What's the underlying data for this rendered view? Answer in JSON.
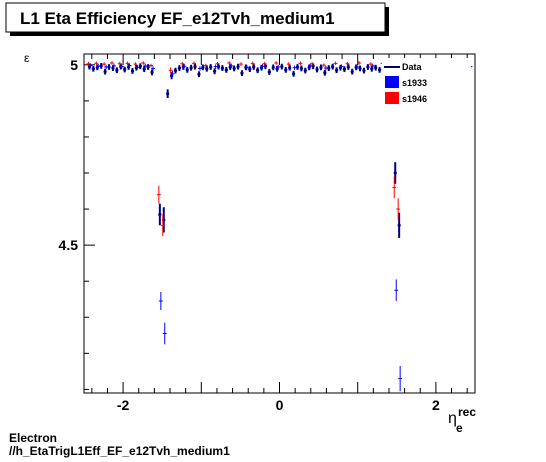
{
  "title": "L1 Eta Efficiency EF_e12Tvh_medium1",
  "footer": {
    "line1": "Electron",
    "line2": "//h_EtaTrigL1Eff_EF_e12Tvh_medium1"
  },
  "colors": {
    "Data": "#00007f",
    "s1933": "#0000ff",
    "s1946": "#ff0000",
    "frame": "#000000"
  },
  "chart_data": {
    "type": "scatter",
    "title": "L1 Eta Efficiency EF_e12Tvh_medium1",
    "xlabel_main": "η",
    "xlabel_sup": "rec",
    "xlabel_sub": "e",
    "ylabel": "ε",
    "xlim": [
      -2.5,
      2.5
    ],
    "ylim": [
      4.09,
      5.03
    ],
    "xticks": [
      -2,
      0,
      2
    ],
    "yticks": [
      4.5,
      5
    ],
    "xtick_labels": [
      "-2",
      "0",
      "2"
    ],
    "ytick_labels": [
      "4.5",
      "5"
    ],
    "grid": false,
    "legend_position": "top-right",
    "series": [
      {
        "name": "Data",
        "style": "points",
        "points": [
          {
            "x": -2.43,
            "y": 4.995,
            "e": 0.008
          },
          {
            "x": -2.38,
            "y": 4.989,
            "e": 0.008
          },
          {
            "x": -2.33,
            "y": 4.993,
            "e": 0.008
          },
          {
            "x": -2.28,
            "y": 4.997,
            "e": 0.008
          },
          {
            "x": -2.23,
            "y": 4.981,
            "e": 0.008
          },
          {
            "x": -2.18,
            "y": 4.994,
            "e": 0.008
          },
          {
            "x": -2.13,
            "y": 4.991,
            "e": 0.008
          },
          {
            "x": -2.08,
            "y": 4.985,
            "e": 0.008
          },
          {
            "x": -2.03,
            "y": 4.995,
            "e": 0.008
          },
          {
            "x": -1.98,
            "y": 4.987,
            "e": 0.008
          },
          {
            "x": -1.93,
            "y": 4.994,
            "e": 0.008
          },
          {
            "x": -1.88,
            "y": 4.983,
            "e": 0.008
          },
          {
            "x": -1.83,
            "y": 4.992,
            "e": 0.008
          },
          {
            "x": -1.78,
            "y": 4.996,
            "e": 0.008
          },
          {
            "x": -1.73,
            "y": 4.988,
            "e": 0.008
          },
          {
            "x": -1.68,
            "y": 4.994,
            "e": 0.008
          },
          {
            "x": -1.63,
            "y": 4.979,
            "e": 0.008
          },
          {
            "x": -1.53,
            "y": 4.585,
            "e": 0.03
          },
          {
            "x": -1.48,
            "y": 4.57,
            "e": 0.035
          },
          {
            "x": -1.43,
            "y": 4.92,
            "e": 0.012
          },
          {
            "x": -1.38,
            "y": 4.97,
            "e": 0.01
          },
          {
            "x": -1.33,
            "y": 4.984,
            "e": 0.008
          },
          {
            "x": -1.28,
            "y": 4.991,
            "e": 0.008
          },
          {
            "x": -1.23,
            "y": 4.994,
            "e": 0.008
          },
          {
            "x": -1.18,
            "y": 4.986,
            "e": 0.008
          },
          {
            "x": -1.13,
            "y": 4.992,
            "e": 0.008
          },
          {
            "x": -1.08,
            "y": 4.995,
            "e": 0.008
          },
          {
            "x": -1.03,
            "y": 4.974,
            "e": 0.008
          },
          {
            "x": -0.98,
            "y": 4.993,
            "e": 0.008
          },
          {
            "x": -0.93,
            "y": 4.989,
            "e": 0.008
          },
          {
            "x": -0.88,
            "y": 4.994,
            "e": 0.008
          },
          {
            "x": -0.83,
            "y": 4.982,
            "e": 0.008
          },
          {
            "x": -0.78,
            "y": 4.995,
            "e": 0.008
          },
          {
            "x": -0.73,
            "y": 4.991,
            "e": 0.008
          },
          {
            "x": -0.68,
            "y": 4.986,
            "e": 0.008
          },
          {
            "x": -0.63,
            "y": 4.994,
            "e": 0.008
          },
          {
            "x": -0.58,
            "y": 4.99,
            "e": 0.008
          },
          {
            "x": -0.53,
            "y": 4.995,
            "e": 0.008
          },
          {
            "x": -0.48,
            "y": 4.977,
            "e": 0.008
          },
          {
            "x": -0.43,
            "y": 4.993,
            "e": 0.008
          },
          {
            "x": -0.38,
            "y": 4.988,
            "e": 0.008
          },
          {
            "x": -0.33,
            "y": 4.994,
            "e": 0.008
          },
          {
            "x": -0.28,
            "y": 4.985,
            "e": 0.008
          },
          {
            "x": -0.23,
            "y": 4.992,
            "e": 0.008
          },
          {
            "x": -0.18,
            "y": 4.996,
            "e": 0.008
          },
          {
            "x": -0.13,
            "y": 4.98,
            "e": 0.008
          },
          {
            "x": -0.08,
            "y": 4.993,
            "e": 0.008
          },
          {
            "x": -0.03,
            "y": 4.989,
            "e": 0.008
          },
          {
            "x": 0.03,
            "y": 4.995,
            "e": 0.008
          },
          {
            "x": 0.08,
            "y": 4.986,
            "e": 0.008
          },
          {
            "x": 0.13,
            "y": 4.992,
            "e": 0.008
          },
          {
            "x": 0.18,
            "y": 4.975,
            "e": 0.008
          },
          {
            "x": 0.23,
            "y": 4.994,
            "e": 0.008
          },
          {
            "x": 0.28,
            "y": 4.99,
            "e": 0.008
          },
          {
            "x": 0.33,
            "y": 4.984,
            "e": 0.008
          },
          {
            "x": 0.38,
            "y": 4.993,
            "e": 0.008
          },
          {
            "x": 0.43,
            "y": 4.996,
            "e": 0.008
          },
          {
            "x": 0.48,
            "y": 4.987,
            "e": 0.008
          },
          {
            "x": 0.53,
            "y": 4.993,
            "e": 0.008
          },
          {
            "x": 0.58,
            "y": 4.978,
            "e": 0.008
          },
          {
            "x": 0.63,
            "y": 4.991,
            "e": 0.008
          },
          {
            "x": 0.68,
            "y": 4.995,
            "e": 0.008
          },
          {
            "x": 0.73,
            "y": 4.985,
            "e": 0.008
          },
          {
            "x": 0.78,
            "y": 4.992,
            "e": 0.008
          },
          {
            "x": 0.83,
            "y": 4.988,
            "e": 0.008
          },
          {
            "x": 0.88,
            "y": 4.994,
            "e": 0.008
          },
          {
            "x": 0.93,
            "y": 4.981,
            "e": 0.008
          },
          {
            "x": 0.98,
            "y": 4.993,
            "e": 0.008
          },
          {
            "x": 1.03,
            "y": 4.99,
            "e": 0.008
          },
          {
            "x": 1.08,
            "y": 4.984,
            "e": 0.008
          },
          {
            "x": 1.13,
            "y": 4.994,
            "e": 0.008
          },
          {
            "x": 1.18,
            "y": 4.989,
            "e": 0.008
          },
          {
            "x": 1.23,
            "y": 4.992,
            "e": 0.008
          },
          {
            "x": 1.28,
            "y": 4.986,
            "e": 0.008
          },
          {
            "x": 1.33,
            "y": 4.994,
            "e": 0.008
          },
          {
            "x": 1.38,
            "y": 4.972,
            "e": 0.01
          },
          {
            "x": 1.43,
            "y": 4.93,
            "e": 0.012
          },
          {
            "x": 1.48,
            "y": 4.7,
            "e": 0.03
          },
          {
            "x": 1.53,
            "y": 4.555,
            "e": 0.035
          },
          {
            "x": 1.58,
            "y": 4.978,
            "e": 0.01
          },
          {
            "x": 1.63,
            "y": 4.986,
            "e": 0.008
          },
          {
            "x": 1.68,
            "y": 4.993,
            "e": 0.008
          },
          {
            "x": 1.73,
            "y": 4.989,
            "e": 0.008
          },
          {
            "x": 1.78,
            "y": 4.995,
            "e": 0.008
          },
          {
            "x": 1.83,
            "y": 4.983,
            "e": 0.008
          },
          {
            "x": 1.88,
            "y": 4.992,
            "e": 0.008
          },
          {
            "x": 1.93,
            "y": 4.987,
            "e": 0.008
          },
          {
            "x": 1.98,
            "y": 4.994,
            "e": 0.008
          },
          {
            "x": 2.03,
            "y": 4.99,
            "e": 0.008
          },
          {
            "x": 2.08,
            "y": 4.986,
            "e": 0.008
          },
          {
            "x": 2.13,
            "y": 4.993,
            "e": 0.008
          },
          {
            "x": 2.18,
            "y": 4.979,
            "e": 0.008
          },
          {
            "x": 2.23,
            "y": 4.994,
            "e": 0.008
          },
          {
            "x": 2.28,
            "y": 4.991,
            "e": 0.008
          },
          {
            "x": 2.33,
            "y": 4.985,
            "e": 0.008
          },
          {
            "x": 2.38,
            "y": 4.993,
            "e": 0.008
          },
          {
            "x": 2.43,
            "y": 4.989,
            "e": 0.008
          }
        ]
      },
      {
        "name": "s1933",
        "style": "errorbars",
        "points": [
          {
            "x": -2.43,
            "y": 4.998,
            "e": 0.006
          },
          {
            "x": -2.33,
            "y": 4.996,
            "e": 0.006
          },
          {
            "x": -2.23,
            "y": 4.994,
            "e": 0.006
          },
          {
            "x": -2.13,
            "y": 4.997,
            "e": 0.006
          },
          {
            "x": -2.03,
            "y": 4.995,
            "e": 0.006
          },
          {
            "x": -1.93,
            "y": 4.998,
            "e": 0.006
          },
          {
            "x": -1.83,
            "y": 4.993,
            "e": 0.006
          },
          {
            "x": -1.73,
            "y": 4.997,
            "e": 0.006
          },
          {
            "x": -1.63,
            "y": 4.99,
            "e": 0.006
          },
          {
            "x": -1.53,
            "y": 4.345,
            "e": 0.025
          },
          {
            "x": -1.48,
            "y": 4.255,
            "e": 0.03
          },
          {
            "x": -1.38,
            "y": 4.975,
            "e": 0.008
          },
          {
            "x": -1.23,
            "y": 4.996,
            "e": 0.006
          },
          {
            "x": -1.03,
            "y": 4.99,
            "e": 0.006
          },
          {
            "x": -0.83,
            "y": 4.995,
            "e": 0.006
          },
          {
            "x": -0.63,
            "y": 4.997,
            "e": 0.006
          },
          {
            "x": -0.43,
            "y": 4.993,
            "e": 0.006
          },
          {
            "x": -0.23,
            "y": 4.996,
            "e": 0.006
          },
          {
            "x": -0.03,
            "y": 4.994,
            "e": 0.006
          },
          {
            "x": 0.18,
            "y": 4.992,
            "e": 0.006
          },
          {
            "x": 0.38,
            "y": 4.997,
            "e": 0.006
          },
          {
            "x": 0.58,
            "y": 4.991,
            "e": 0.006
          },
          {
            "x": 0.78,
            "y": 4.995,
            "e": 0.006
          },
          {
            "x": 0.98,
            "y": 4.994,
            "e": 0.006
          },
          {
            "x": 1.18,
            "y": 4.997,
            "e": 0.006
          },
          {
            "x": 1.38,
            "y": 4.985,
            "e": 0.008
          },
          {
            "x": 1.48,
            "y": 4.375,
            "e": 0.03
          },
          {
            "x": 1.53,
            "y": 4.13,
            "e": 0.035
          },
          {
            "x": 1.63,
            "y": 4.99,
            "e": 0.006
          },
          {
            "x": 1.83,
            "y": 4.996,
            "e": 0.006
          },
          {
            "x": 2.03,
            "y": 4.994,
            "e": 0.006
          },
          {
            "x": 2.23,
            "y": 4.997,
            "e": 0.006
          },
          {
            "x": 2.43,
            "y": 4.995,
            "e": 0.006
          }
        ]
      },
      {
        "name": "s1946",
        "style": "errorbars",
        "points": [
          {
            "x": -2.43,
            "y": 5.003,
            "e": 0.005
          },
          {
            "x": -2.33,
            "y": 5.004,
            "e": 0.005
          },
          {
            "x": -2.23,
            "y": 5.002,
            "e": 0.005
          },
          {
            "x": -2.13,
            "y": 5.005,
            "e": 0.005
          },
          {
            "x": -2.03,
            "y": 5.003,
            "e": 0.005
          },
          {
            "x": -1.93,
            "y": 5.004,
            "e": 0.005
          },
          {
            "x": -1.83,
            "y": 5.002,
            "e": 0.005
          },
          {
            "x": -1.73,
            "y": 5.005,
            "e": 0.005
          },
          {
            "x": -1.63,
            "y": 4.998,
            "e": 0.005
          },
          {
            "x": -1.53,
            "y": 4.64,
            "e": 0.025
          },
          {
            "x": -1.48,
            "y": 4.555,
            "e": 0.03
          },
          {
            "x": -1.38,
            "y": 4.985,
            "e": 0.008
          },
          {
            "x": -1.23,
            "y": 5.003,
            "e": 0.005
          },
          {
            "x": -1.08,
            "y": 5.004,
            "e": 0.005
          },
          {
            "x": -0.93,
            "y": 4.998,
            "e": 0.005
          },
          {
            "x": -0.78,
            "y": 5.003,
            "e": 0.005
          },
          {
            "x": -0.63,
            "y": 5.005,
            "e": 0.005
          },
          {
            "x": -0.48,
            "y": 5.002,
            "e": 0.005
          },
          {
            "x": -0.33,
            "y": 5.004,
            "e": 0.005
          },
          {
            "x": -0.18,
            "y": 5.003,
            "e": 0.005
          },
          {
            "x": -0.03,
            "y": 5.005,
            "e": 0.005
          },
          {
            "x": 0.13,
            "y": 5.002,
            "e": 0.005
          },
          {
            "x": 0.28,
            "y": 5.004,
            "e": 0.005
          },
          {
            "x": 0.43,
            "y": 5.003,
            "e": 0.005
          },
          {
            "x": 0.58,
            "y": 4.999,
            "e": 0.005
          },
          {
            "x": 0.73,
            "y": 5.004,
            "e": 0.005
          },
          {
            "x": 0.88,
            "y": 5.003,
            "e": 0.005
          },
          {
            "x": 1.03,
            "y": 5.005,
            "e": 0.005
          },
          {
            "x": 1.18,
            "y": 5.002,
            "e": 0.005
          },
          {
            "x": 1.33,
            "y": 5.004,
            "e": 0.005
          },
          {
            "x": 1.48,
            "y": 4.66,
            "e": 0.03
          },
          {
            "x": 1.53,
            "y": 4.6,
            "e": 0.03
          },
          {
            "x": 1.63,
            "y": 4.998,
            "e": 0.005
          },
          {
            "x": 1.78,
            "y": 5.004,
            "e": 0.005
          },
          {
            "x": 1.93,
            "y": 5.003,
            "e": 0.005
          },
          {
            "x": 2.08,
            "y": 5.005,
            "e": 0.005
          },
          {
            "x": 2.23,
            "y": 5.002,
            "e": 0.005
          },
          {
            "x": 2.38,
            "y": 5.004,
            "e": 0.005
          }
        ]
      }
    ]
  }
}
